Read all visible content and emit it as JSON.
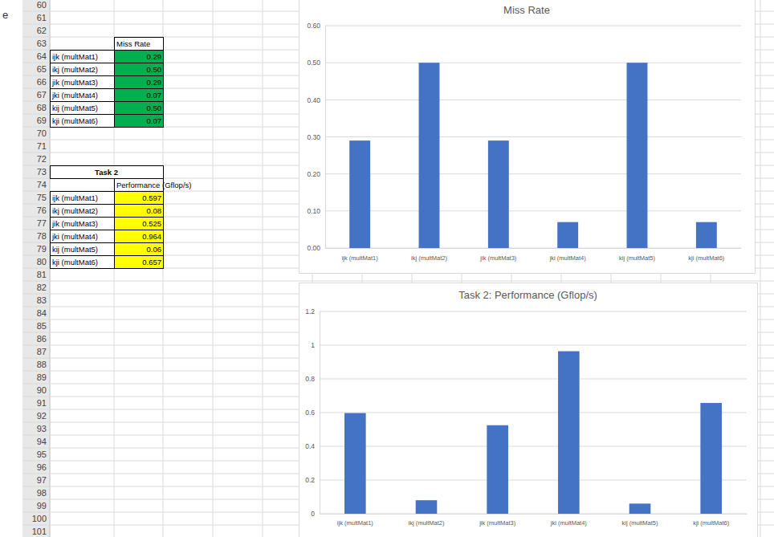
{
  "chart_data": [
    {
      "type": "bar",
      "title": "Miss Rate",
      "categories": [
        "ijk (multMat1)",
        "ikj (multMat2)",
        "jik (multMat3)",
        "jki (multMat4)",
        "kij (multMat5)",
        "kji (multMat6)"
      ],
      "values": [
        0.29,
        0.5,
        0.29,
        0.07,
        0.5,
        0.07
      ],
      "color": "#4472c4",
      "ylim": [
        0,
        0.6
      ],
      "yticks": [
        {
          "value": 0,
          "label": "0.00"
        },
        {
          "value": 0.1,
          "label": "0.10"
        },
        {
          "value": 0.2,
          "label": "0.20"
        },
        {
          "value": 0.3,
          "label": "0.30"
        },
        {
          "value": 0.4,
          "label": "0.40"
        },
        {
          "value": 0.5,
          "label": "0.50"
        },
        {
          "value": 0.6,
          "label": "0.60"
        }
      ],
      "grid": true
    },
    {
      "type": "bar",
      "title": "Task 2: Performance (Gflop/s)",
      "categories": [
        "ijk (multMat1)",
        "ikj (multMat2)",
        "jik (multMat3)",
        "jki (multMat4)",
        "kij (multMat5)",
        "kji (multMat6)"
      ],
      "values": [
        0.597,
        0.08,
        0.525,
        0.964,
        0.06,
        0.657
      ],
      "color": "#4472c4",
      "ylim": [
        0,
        1.2
      ],
      "yticks": [
        0,
        0.2,
        0.4,
        0.6,
        0.8,
        1,
        1.2
      ],
      "grid": true
    }
  ],
  "sheet": {
    "side_text": "e",
    "row_numbers": [
      60,
      61,
      62,
      63,
      64,
      65,
      66,
      67,
      68,
      69,
      70,
      71,
      72,
      73,
      74,
      75,
      76,
      77,
      78,
      79,
      80,
      81,
      82,
      83,
      84,
      85,
      86,
      87,
      88,
      89,
      90,
      91,
      92,
      93,
      94,
      95,
      96,
      97,
      98,
      99,
      100,
      101
    ],
    "tables": [
      {
        "header": "Miss Rate",
        "rows": [
          [
            "ijk (multMat1)",
            "0.29"
          ],
          [
            "ikj (multMat2)",
            "0.50"
          ],
          [
            "jik (multMat3)",
            "0.29"
          ],
          [
            "jki (multMat4)",
            "0.07"
          ],
          [
            "kij (multMat5)",
            "0.50"
          ],
          [
            "kji (multMat6)",
            "0.07"
          ]
        ]
      },
      {
        "title": "Task 2",
        "header": "Performance (Gflop/s)",
        "rows": [
          [
            "ijk (multMat1)",
            "0.597"
          ],
          [
            "ikj (multMat2)",
            "0.08"
          ],
          [
            "jik (multMat3)",
            "0.525"
          ],
          [
            "jki (multMat4)",
            "0.964"
          ],
          [
            "kij (multMat5)",
            "0.06"
          ],
          [
            "kji (multMat6)",
            "0.657"
          ]
        ]
      }
    ]
  }
}
